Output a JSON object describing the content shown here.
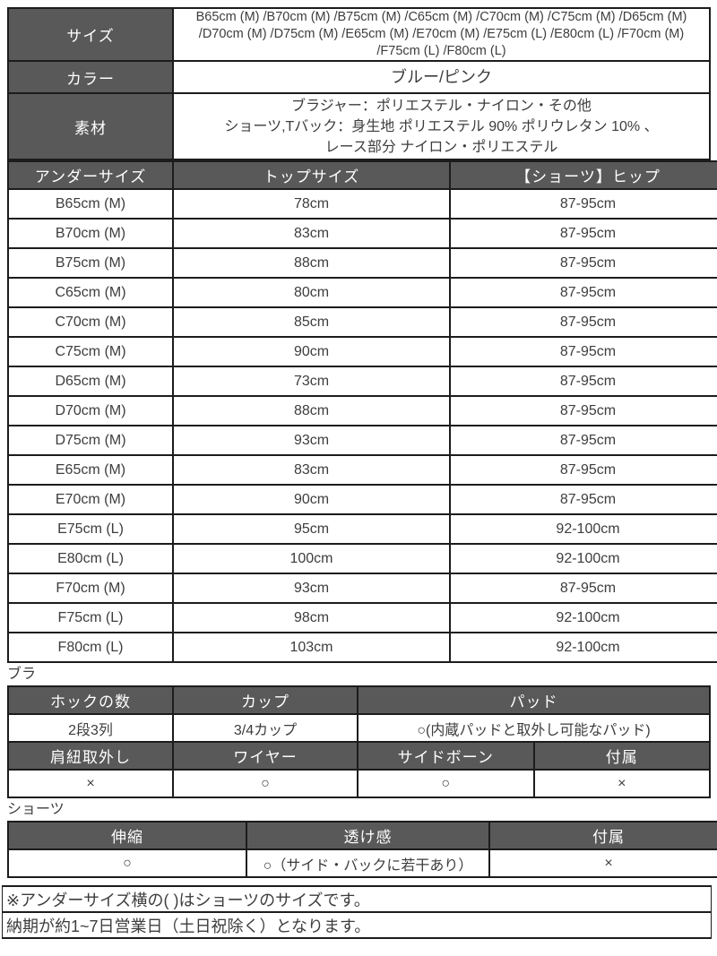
{
  "colors": {
    "header_bg": "#595959",
    "header_text": "#ffffff",
    "border": "#1c1c1c",
    "body_text": "#3d3d3d"
  },
  "info_table": {
    "rows": [
      {
        "label": "サイズ",
        "value": "B65cm (M) /B70cm (M) /B75cm (M) /C65cm (M) /C70cm (M) /C75cm (M) /D65cm (M) /D70cm (M) /D75cm (M) /E65cm (M) /E70cm (M) /E75cm (L) /E80cm (L) /F70cm (M) /F75cm (L) /F80cm (L)"
      },
      {
        "label": "カラー",
        "value": "ブルー/ピンク"
      },
      {
        "label": "素材",
        "lines": [
          "ブラジャー：ポリエステル・ナイロン・その他",
          "ショーツ,Tバック：身生地 ポリエステル 90% ポリウレタン 10% 、",
          "レース部分 ナイロン・ポリエステル"
        ]
      }
    ]
  },
  "size_table": {
    "headers": [
      "アンダーサイズ",
      "トップサイズ",
      "【ショーツ】ヒップ"
    ],
    "rows": [
      [
        "B65cm (M)",
        "78cm",
        "87-95cm"
      ],
      [
        "B70cm (M)",
        "83cm",
        "87-95cm"
      ],
      [
        "B75cm (M)",
        "88cm",
        "87-95cm"
      ],
      [
        "C65cm (M)",
        "80cm",
        "87-95cm"
      ],
      [
        "C70cm (M)",
        "85cm",
        "87-95cm"
      ],
      [
        "C75cm (M)",
        "90cm",
        "87-95cm"
      ],
      [
        "D65cm (M)",
        "73cm",
        "87-95cm"
      ],
      [
        "D70cm (M)",
        "88cm",
        "87-95cm"
      ],
      [
        "D75cm (M)",
        "93cm",
        "87-95cm"
      ],
      [
        "E65cm (M)",
        "83cm",
        "87-95cm"
      ],
      [
        "E70cm (M)",
        "90cm",
        "87-95cm"
      ],
      [
        "E75cm (L)",
        "95cm",
        "92-100cm"
      ],
      [
        "E80cm (L)",
        "100cm",
        "92-100cm"
      ],
      [
        "F70cm (M)",
        "93cm",
        "87-95cm"
      ],
      [
        "F75cm (L)",
        "98cm",
        "92-100cm"
      ],
      [
        "F80cm (L)",
        "103cm",
        "92-100cm"
      ]
    ]
  },
  "bra_section": {
    "label": "ブラ",
    "row1_headers": [
      "ホックの数",
      "カップ",
      "パッド"
    ],
    "row1_values": [
      "2段3列",
      "3/4カップ",
      "○(内蔵パッドと取外し可能なパッド)"
    ],
    "row2_headers": [
      "肩紐取外し",
      "ワイヤー",
      "サイドボーン",
      "付属"
    ],
    "row2_values": [
      "×",
      "○",
      "○",
      "×"
    ]
  },
  "shorts_section": {
    "label": "ショーツ",
    "headers": [
      "伸縮",
      "透け感",
      "付属"
    ],
    "values": [
      "○",
      "○（サイド・バックに若干あり）",
      "×"
    ]
  },
  "notes": [
    "※アンダーサイズ横の( )はショーツのサイズです。",
    "納期が約1~7日営業日（土日祝除く）となります。"
  ]
}
